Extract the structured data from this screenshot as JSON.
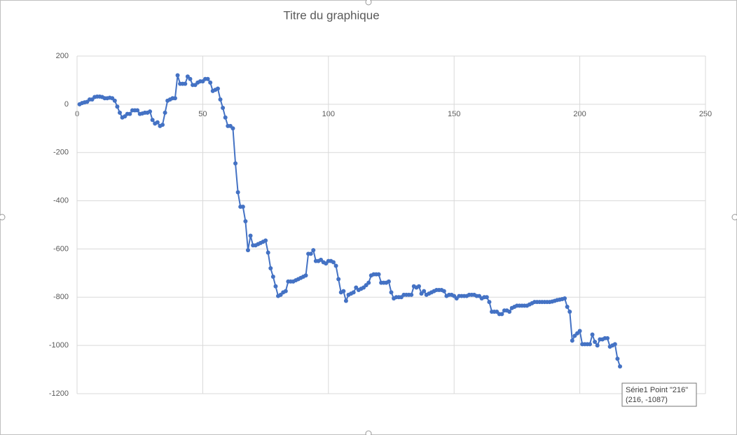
{
  "chart_data": {
    "type": "line",
    "title": "Titre du graphique",
    "color": "#4472c4",
    "grid": true,
    "xlim": [
      0,
      250
    ],
    "xticks": [
      0,
      50,
      100,
      150,
      200,
      250
    ],
    "ylim": [
      -1200,
      200
    ],
    "yticks": [
      -1200,
      -1000,
      -800,
      -600,
      -400,
      -200,
      0,
      200
    ],
    "x": [
      1,
      2,
      3,
      4,
      5,
      6,
      7,
      8,
      9,
      10,
      11,
      12,
      13,
      14,
      15,
      16,
      17,
      18,
      19,
      20,
      21,
      22,
      23,
      24,
      25,
      26,
      27,
      28,
      29,
      30,
      31,
      32,
      33,
      34,
      35,
      36,
      37,
      38,
      39,
      40,
      41,
      42,
      43,
      44,
      45,
      46,
      47,
      48,
      49,
      50,
      51,
      52,
      53,
      54,
      55,
      56,
      57,
      58,
      59,
      60,
      61,
      62,
      63,
      64,
      65,
      66,
      67,
      68,
      69,
      70,
      71,
      72,
      73,
      74,
      75,
      76,
      77,
      78,
      79,
      80,
      81,
      82,
      83,
      84,
      85,
      86,
      87,
      88,
      89,
      90,
      91,
      92,
      93,
      94,
      95,
      96,
      97,
      98,
      99,
      100,
      101,
      102,
      103,
      104,
      105,
      106,
      107,
      108,
      109,
      110,
      111,
      112,
      113,
      114,
      115,
      116,
      117,
      118,
      119,
      120,
      121,
      122,
      123,
      124,
      125,
      126,
      127,
      128,
      129,
      130,
      131,
      132,
      133,
      134,
      135,
      136,
      137,
      138,
      139,
      140,
      141,
      142,
      143,
      144,
      145,
      146,
      147,
      148,
      149,
      150,
      151,
      152,
      153,
      154,
      155,
      156,
      157,
      158,
      159,
      160,
      161,
      162,
      163,
      164,
      165,
      166,
      167,
      168,
      169,
      170,
      171,
      172,
      173,
      174,
      175,
      176,
      177,
      178,
      179,
      180,
      181,
      182,
      183,
      184,
      185,
      186,
      187,
      188,
      189,
      190,
      191,
      192,
      193,
      194,
      195,
      196,
      197,
      198,
      199,
      200,
      201,
      202,
      203,
      204,
      205,
      206,
      207,
      208,
      209,
      210,
      211,
      212,
      213,
      214,
      215,
      216
    ],
    "values": [
      0,
      5,
      8,
      10,
      20,
      20,
      30,
      32,
      32,
      30,
      25,
      25,
      27,
      25,
      15,
      -10,
      -35,
      -55,
      -50,
      -40,
      -40,
      -25,
      -25,
      -25,
      -40,
      -38,
      -35,
      -35,
      -30,
      -65,
      -80,
      -75,
      -90,
      -85,
      -35,
      15,
      20,
      25,
      25,
      120,
      85,
      85,
      85,
      115,
      105,
      80,
      80,
      90,
      95,
      95,
      105,
      105,
      90,
      55,
      60,
      65,
      20,
      -15,
      -55,
      -90,
      -90,
      -100,
      -245,
      -365,
      -425,
      -425,
      -485,
      -605,
      -545,
      -585,
      -585,
      -580,
      -575,
      -570,
      -565,
      -615,
      -680,
      -715,
      -755,
      -795,
      -790,
      -780,
      -775,
      -735,
      -735,
      -735,
      -730,
      -725,
      -720,
      -715,
      -710,
      -620,
      -620,
      -605,
      -650,
      -650,
      -645,
      -655,
      -660,
      -650,
      -650,
      -655,
      -670,
      -725,
      -780,
      -775,
      -815,
      -790,
      -785,
      -780,
      -760,
      -770,
      -765,
      -760,
      -750,
      -740,
      -710,
      -705,
      -705,
      -705,
      -740,
      -740,
      -740,
      -735,
      -780,
      -805,
      -800,
      -800,
      -800,
      -790,
      -790,
      -790,
      -790,
      -755,
      -760,
      -755,
      -785,
      -775,
      -790,
      -785,
      -780,
      -775,
      -770,
      -770,
      -770,
      -775,
      -795,
      -790,
      -790,
      -795,
      -805,
      -795,
      -795,
      -795,
      -795,
      -790,
      -790,
      -790,
      -795,
      -795,
      -805,
      -800,
      -800,
      -820,
      -860,
      -860,
      -860,
      -870,
      -870,
      -855,
      -855,
      -860,
      -845,
      -840,
      -835,
      -835,
      -835,
      -835,
      -835,
      -830,
      -825,
      -820,
      -820,
      -820,
      -820,
      -820,
      -820,
      -820,
      -818,
      -815,
      -812,
      -810,
      -808,
      -805,
      -840,
      -860,
      -980,
      -960,
      -950,
      -940,
      -995,
      -995,
      -995,
      -995,
      -955,
      -985,
      -1000,
      -975,
      -975,
      -970,
      -970,
      -1005,
      -1000,
      -995,
      -1055,
      -1087
    ],
    "tooltip": {
      "line1": "Série1 Point \"216\"",
      "line2": "(216, -1087)"
    }
  }
}
